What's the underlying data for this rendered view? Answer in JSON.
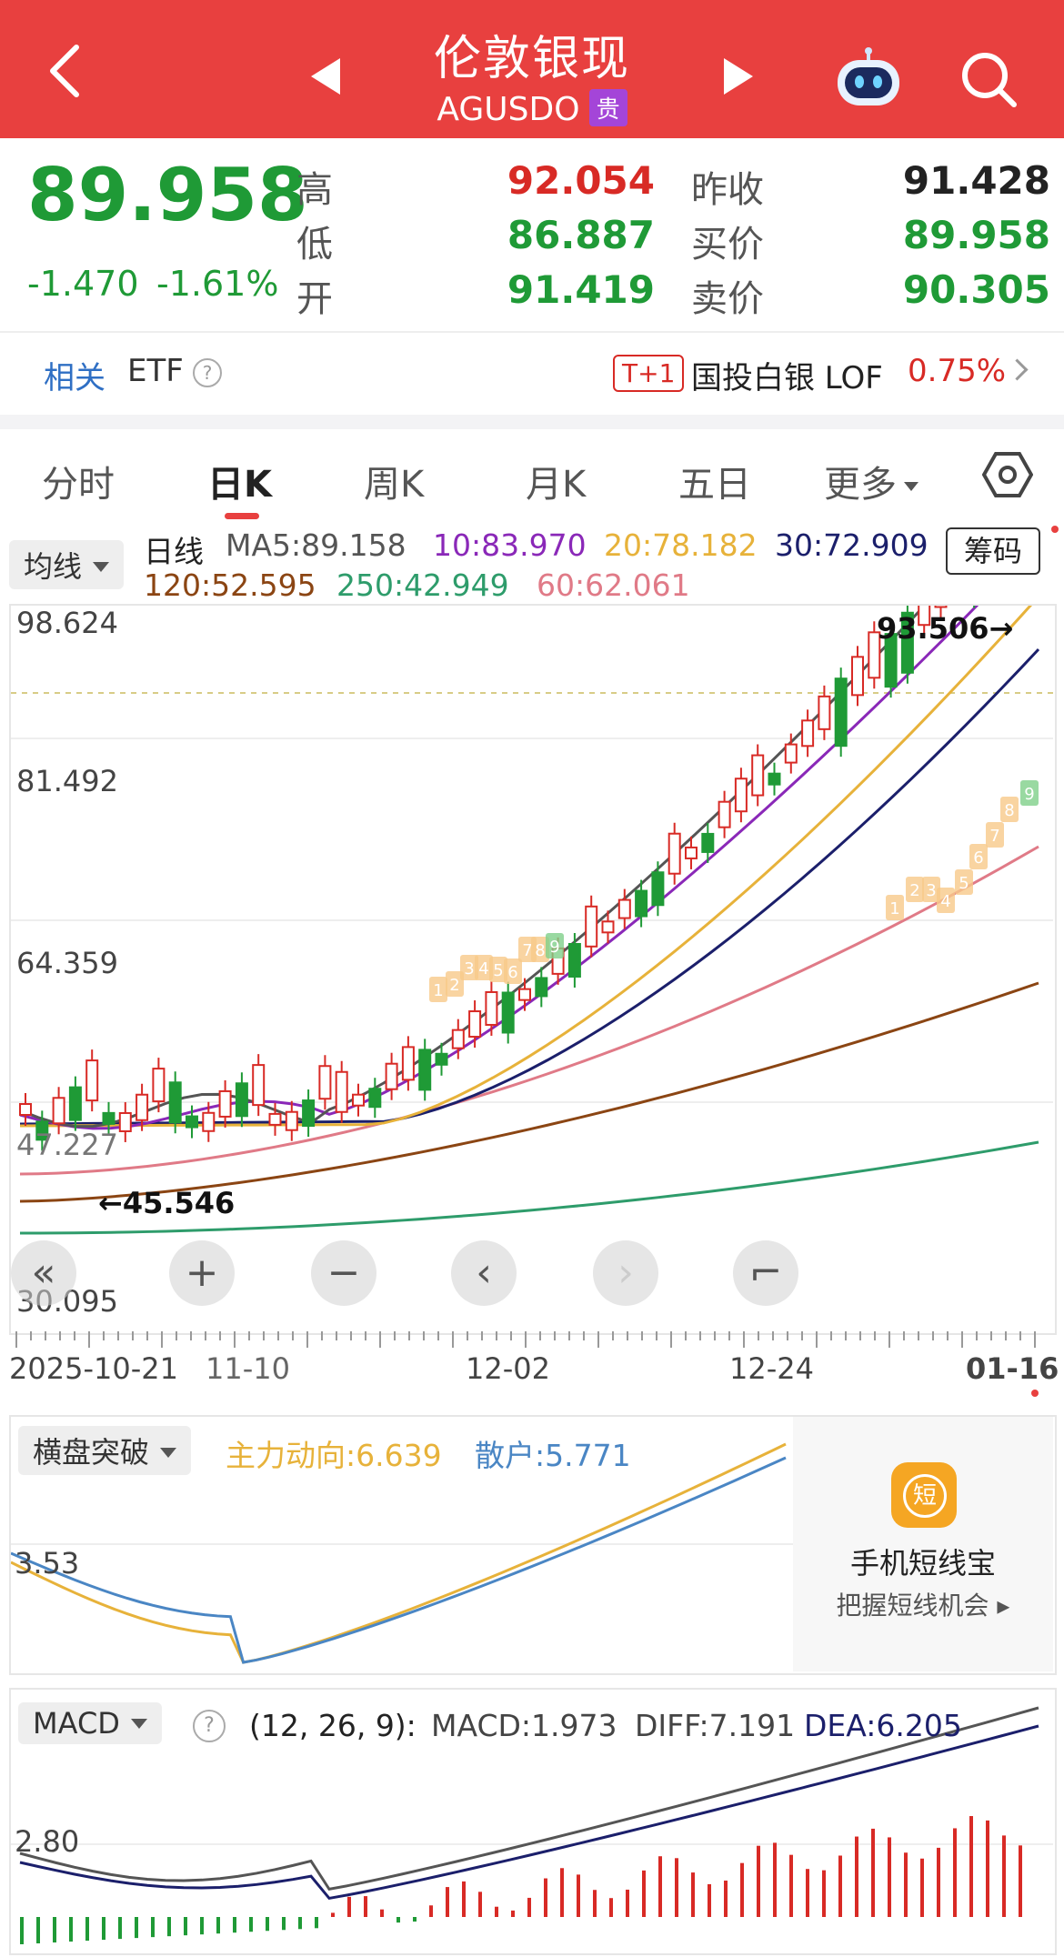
{
  "header": {
    "title": "伦敦银现",
    "symbol": "AGUSDO",
    "tag": "贵"
  },
  "quote": {
    "price": "89.958",
    "change": "-1.470",
    "change_pct": "-1.61%",
    "high_label": "高",
    "high": "92.054",
    "low_label": "低",
    "low": "86.887",
    "open_label": "开",
    "open": "91.419",
    "prev_close_label": "昨收",
    "prev_close": "91.428",
    "bid_label": "买价",
    "bid": "89.958",
    "ask_label": "卖价",
    "ask": "90.305"
  },
  "etf": {
    "related": "相关",
    "label": "ETF",
    "badge": "T+1",
    "fund": "国投白银 LOF",
    "fund_pct": "0.75%"
  },
  "tabs": [
    "分时",
    "日K",
    "周K",
    "月K",
    "五日",
    "更多"
  ],
  "active_tab": "日K",
  "ma_legend": {
    "mode": "均线",
    "title": "日线",
    "ma5": "MA5:89.158",
    "ma10": "10:83.970",
    "ma20": "20:78.182",
    "ma30": "30:72.909",
    "ma120": "120:52.595",
    "ma250": "250:42.949",
    "ma60": "60:62.061",
    "chips": "筹码"
  },
  "kline": {
    "y_labels": [
      "98.624",
      "81.492",
      "64.359",
      "30.095"
    ],
    "overlapped_label": "47.227",
    "max_label": "93.506→",
    "min_label": "←45.546",
    "x_labels": [
      "2025-10-21",
      "11-10",
      "12-02",
      "12-24",
      "01-16"
    ],
    "seq_labels": [
      "1",
      "2",
      "3",
      "4",
      "5",
      "6",
      "7",
      "8",
      "9",
      "1",
      "2",
      "3",
      "4",
      "5",
      "6",
      "7",
      "8",
      "9"
    ]
  },
  "controls": [
    "«",
    "+",
    "−",
    "‹",
    "›",
    "⌐"
  ],
  "indicator1": {
    "name": "横盘突破",
    "main": "主力动向:6.639",
    "retail": "散户:5.771",
    "y_label": "3.53"
  },
  "promo": {
    "icon_char": "短",
    "title": "手机短线宝",
    "subtitle": "把握短线机会 ▸"
  },
  "macd": {
    "name": "MACD",
    "params": "(12, 26, 9):",
    "macd": "MACD:1.973",
    "diff": "DIFF:7.191",
    "dea": "DEA:6.205",
    "y_label": "2.80"
  },
  "colors": {
    "header": "#e8403f",
    "up": "#d82a25",
    "down": "#1f9a36",
    "ma5": "#555555",
    "ma10": "#8a28b8",
    "ma20": "#e7b23a",
    "ma30": "#1b1f6b",
    "ma60": "#e07a87",
    "ma120": "#8b4513",
    "ma250": "#2e9c6b"
  }
}
